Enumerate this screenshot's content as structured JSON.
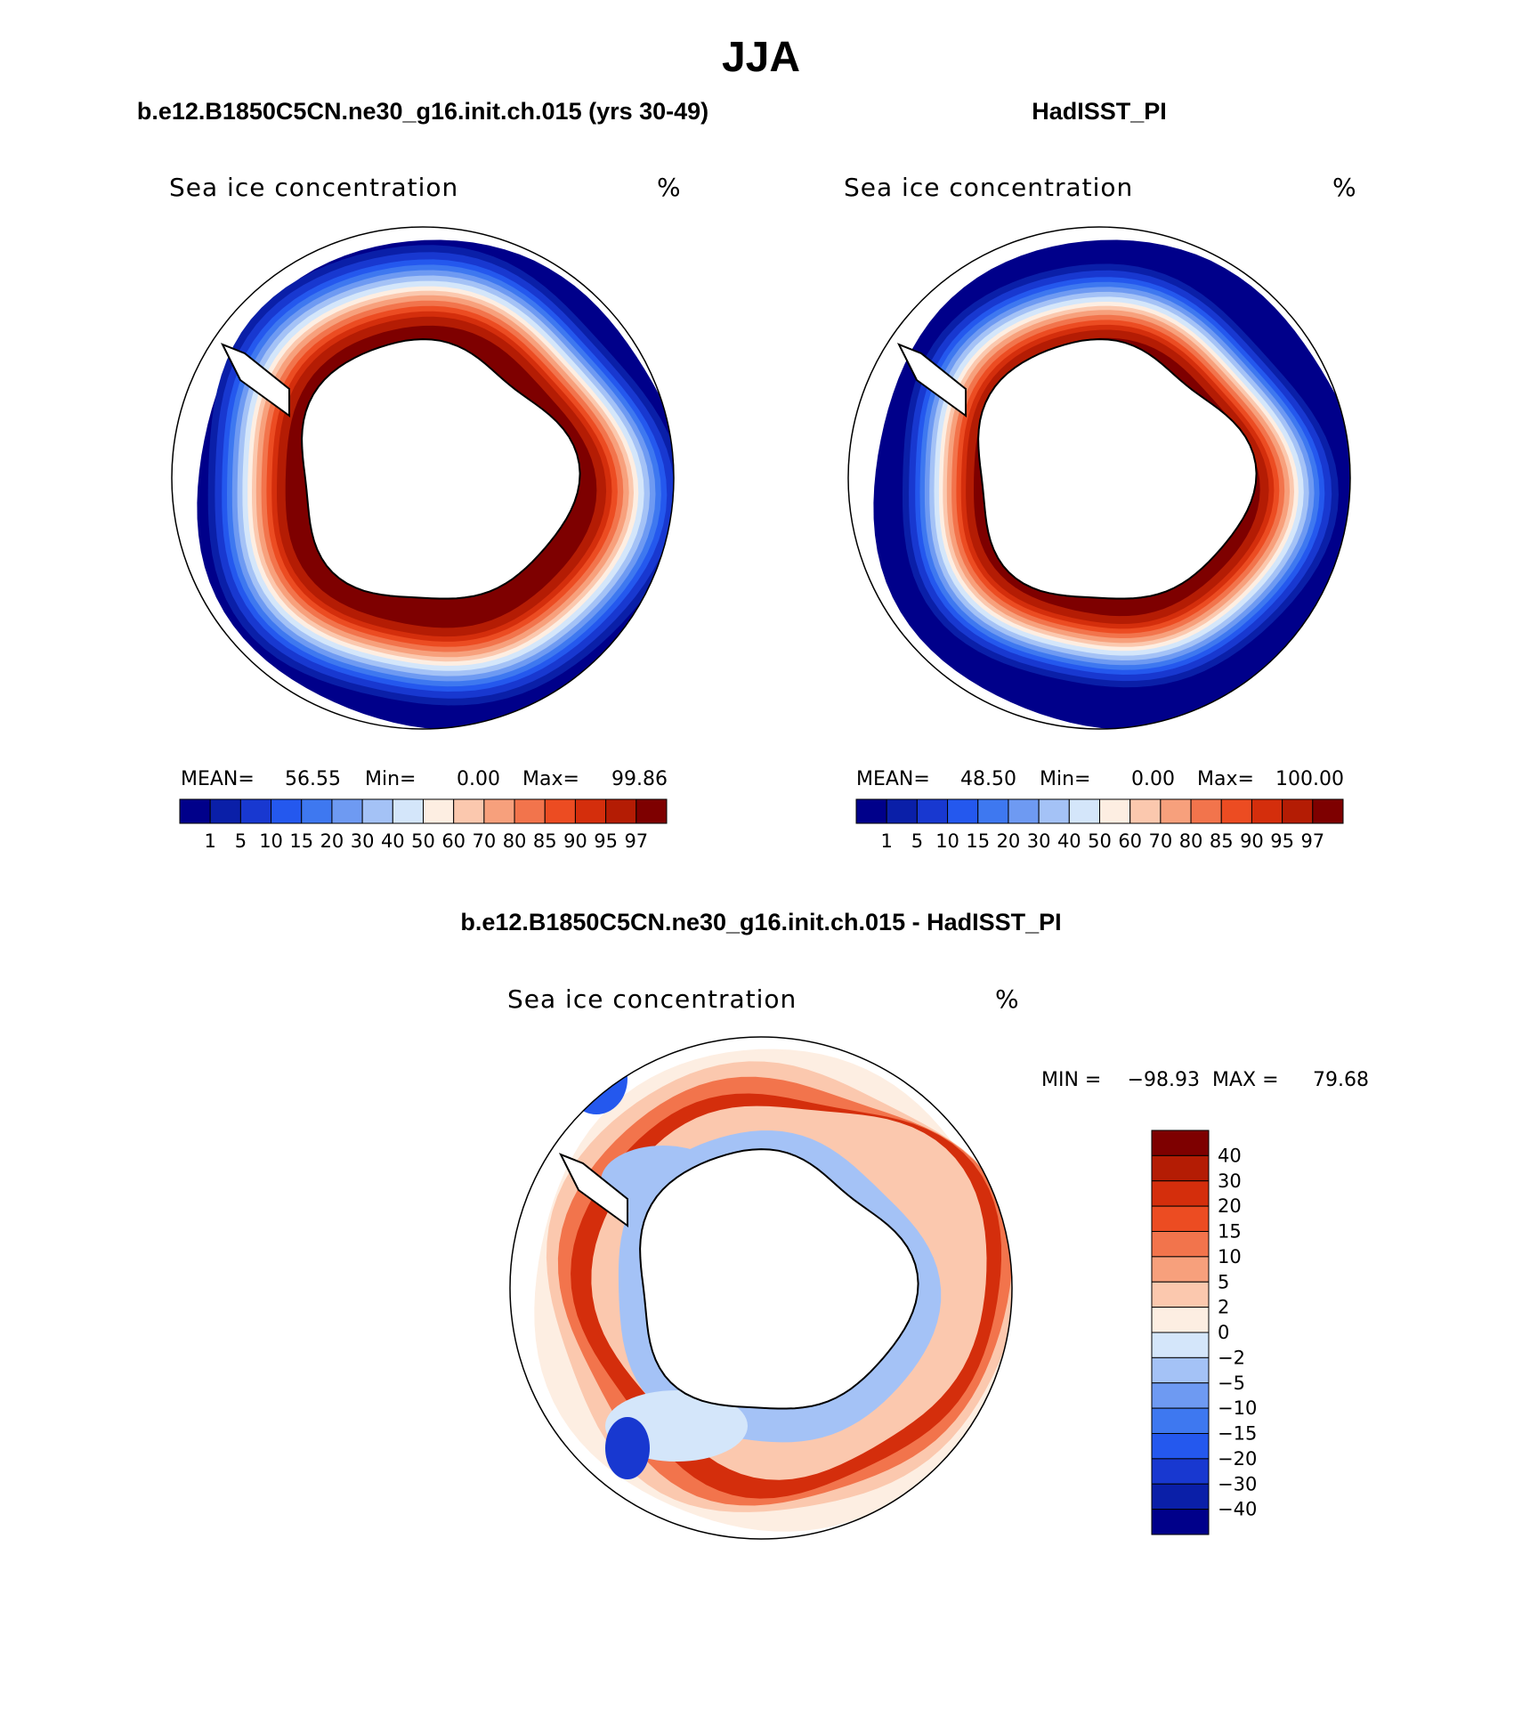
{
  "chart_data": {
    "type": "polar-contour-map",
    "suptitle": "JJA",
    "panels": [
      {
        "id": "model",
        "title": "b.e12.B1850C5CN.ne30_g16.init.ch.015 (yrs 30-49)",
        "field_label": "Sea ice concentration",
        "units": "%",
        "stats": {
          "mean_label": "MEAN=",
          "mean": "56.55",
          "min_label": "Min=",
          "min": "0.00",
          "max_label": "Max=",
          "max": "99.86"
        },
        "colorbar_levels": [
          "1",
          "5",
          "10",
          "15",
          "20",
          "30",
          "40",
          "50",
          "60",
          "70",
          "80",
          "85",
          "90",
          "95",
          "97"
        ],
        "ice_edge_scale": 1.0
      },
      {
        "id": "obs",
        "title": "HadISST_PI",
        "field_label": "Sea ice concentration",
        "units": "%",
        "stats": {
          "mean_label": "MEAN=",
          "mean": "48.50",
          "min_label": "Min=",
          "min": "0.00",
          "max_label": "Max=",
          "max": "100.00"
        },
        "colorbar_levels": [
          "1",
          "5",
          "10",
          "15",
          "20",
          "30",
          "40",
          "50",
          "60",
          "70",
          "80",
          "85",
          "90",
          "95",
          "97"
        ],
        "ice_edge_scale": 0.92
      },
      {
        "id": "diff",
        "title": "b.e12.B1850C5CN.ne30_g16.init.ch.015 - HadISST_PI",
        "field_label": "Sea ice concentration",
        "units": "%",
        "stats": {
          "min_label": "MIN =",
          "min": "−98.93",
          "max_label": "MAX =",
          "max": "79.68"
        },
        "colorbar_levels": [
          "40",
          "30",
          "20",
          "15",
          "10",
          "5",
          "2",
          "0",
          "−2",
          "−5",
          "−10",
          "−15",
          "−20",
          "−30",
          "−40"
        ]
      }
    ],
    "abs_colors": [
      "#00008a",
      "#0a1fa8",
      "#1838d0",
      "#2458ee",
      "#3e78f0",
      "#6e9af2",
      "#a4c2f6",
      "#d4e6fa",
      "#fdeee2",
      "#fbc8ae",
      "#f7a07c",
      "#f2744c",
      "#ec4c22",
      "#d42e0c",
      "#b41c04",
      "#7e0000"
    ],
    "diff_colors": [
      "#7e0000",
      "#b41c04",
      "#d42e0c",
      "#ec4c22",
      "#f2744c",
      "#f7a07c",
      "#fbc8ae",
      "#fdeee2",
      "#d4e6fa",
      "#a4c2f6",
      "#6e9af2",
      "#3e78f0",
      "#2458ee",
      "#1838d0",
      "#0a1fa8",
      "#00008a"
    ]
  }
}
